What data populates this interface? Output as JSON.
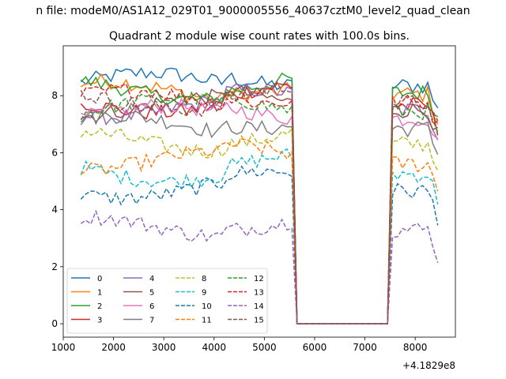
{
  "figure": {
    "suptitle": "n file: modeM0/AS1A12_029T01_9000005556_40637cztM0_level2_quad_clean"
  },
  "chart_data": {
    "type": "line",
    "title": "Quadrant 2 module wise count rates with 100.0s bins.",
    "xlabel": "",
    "ylabel": "",
    "x_offset_label": "+4.1829e8",
    "xlim": [
      1000,
      8800
    ],
    "ylim": [
      -0.47,
      9.75
    ],
    "x_ticks": [
      1000,
      2000,
      3000,
      4000,
      5000,
      6000,
      7000,
      8000
    ],
    "y_ticks": [
      0,
      2,
      4,
      6,
      8
    ],
    "grid": false,
    "legend_position": "lower-left",
    "legend_columns": 4,
    "segments": [
      {
        "x_start": 1350,
        "x_end": 5550,
        "step": 100
      },
      {
        "x_start": 7550,
        "x_end": 8450,
        "step": 100
      }
    ],
    "gap": {
      "x_start": 5650,
      "x_end": 7450,
      "value": 0
    },
    "series": [
      {
        "name": "0",
        "color": "#1f77b4",
        "dash": "solid",
        "level": 8.45
      },
      {
        "name": "1",
        "color": "#ff7f0e",
        "dash": "solid",
        "level": 8.15
      },
      {
        "name": "2",
        "color": "#2ca02c",
        "dash": "solid",
        "level": 8.2
      },
      {
        "name": "3",
        "color": "#d62728",
        "dash": "solid",
        "level": 7.75
      },
      {
        "name": "4",
        "color": "#9467bd",
        "dash": "solid",
        "level": 7.6
      },
      {
        "name": "5",
        "color": "#8c564b",
        "dash": "solid",
        "level": 7.6
      },
      {
        "name": "6",
        "color": "#e377c2",
        "dash": "solid",
        "level": 7.3
      },
      {
        "name": "7",
        "color": "#7f7f7f",
        "dash": "solid",
        "level": 6.95
      },
      {
        "name": "8",
        "color": "#bcbd22",
        "dash": "dashed",
        "level": 6.4
      },
      {
        "name": "9",
        "color": "#17becf",
        "dash": "dashed",
        "level": 5.35
      },
      {
        "name": "10",
        "color": "#1f77b4",
        "dash": "dashed",
        "level": 4.75
      },
      {
        "name": "11",
        "color": "#ff7f0e",
        "dash": "dashed",
        "level": 5.7
      },
      {
        "name": "12",
        "color": "#2ca02c",
        "dash": "dashed",
        "level": 7.55
      },
      {
        "name": "13",
        "color": "#d62728",
        "dash": "dashed",
        "level": 7.85
      },
      {
        "name": "14",
        "color": "#9467bd",
        "dash": "dashed",
        "level": 3.4
      },
      {
        "name": "15",
        "color": "#8c564b",
        "dash": "dashed",
        "level": 7.85
      }
    ]
  }
}
